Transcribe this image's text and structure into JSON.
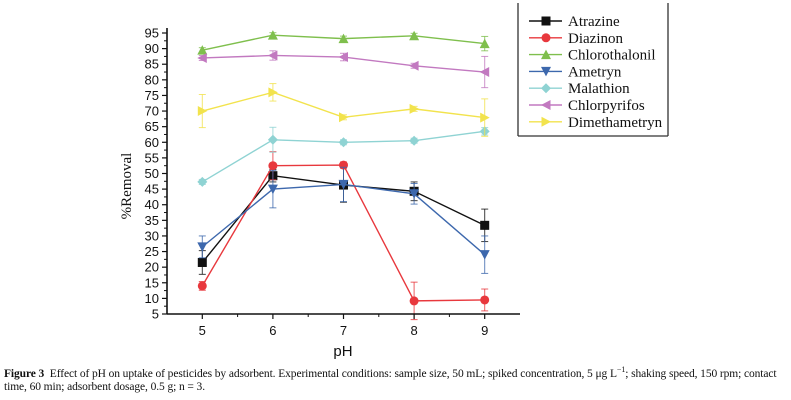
{
  "chart_data": {
    "type": "line",
    "title": "",
    "xlabel": "pH",
    "ylabel": "%Removal",
    "x": [
      5,
      6,
      7,
      8,
      9
    ],
    "xlim": [
      4.5,
      9.5
    ],
    "ylim": [
      5,
      95
    ],
    "xticks": [
      "5",
      "6",
      "7",
      "8",
      "9"
    ],
    "yticks": [
      "5",
      "10",
      "15",
      "20",
      "25",
      "30",
      "35",
      "40",
      "45",
      "50",
      "55",
      "60",
      "65",
      "70",
      "75",
      "80",
      "85",
      "90",
      "95"
    ],
    "grid": false,
    "legend_position": "top-right",
    "error_bars": true,
    "series": [
      {
        "name": "Atrazine",
        "color": "#111111",
        "marker": "square",
        "values": [
          21.5,
          49.3,
          46.3,
          44.3,
          33.4
        ],
        "errors": [
          3.8,
          2.0,
          5.5,
          3.0,
          5.2
        ]
      },
      {
        "name": "Diazinon",
        "color": "#e8383d",
        "marker": "circle",
        "values": [
          14.0,
          52.5,
          52.7,
          9.2,
          9.5
        ],
        "errors": [
          1.4,
          4.5,
          1.0,
          6.0,
          3.5
        ]
      },
      {
        "name": "Chlorothalonil",
        "color": "#7fbf4d",
        "marker": "triangle-up",
        "values": [
          89.5,
          94.3,
          93.2,
          94.1,
          91.6
        ],
        "errors": [
          0.8,
          0.8,
          0.8,
          0.8,
          2.3
        ]
      },
      {
        "name": "Ametryn",
        "color": "#3d68ad",
        "marker": "triangle-down",
        "values": [
          26.5,
          45.0,
          46.5,
          43.5,
          24.0
        ],
        "errors": [
          3.5,
          6.0,
          5.5,
          3.3,
          6.0
        ]
      },
      {
        "name": "Malathion",
        "color": "#8fd3d3",
        "marker": "diamond",
        "values": [
          47.3,
          60.8,
          60.0,
          60.5,
          63.5
        ],
        "errors": [
          0.8,
          4.0,
          0.8,
          0.8,
          1.2
        ]
      },
      {
        "name": "Chlorpyrifos",
        "color": "#c279c0",
        "marker": "triangle-left",
        "values": [
          87.0,
          87.8,
          87.3,
          84.5,
          82.5
        ],
        "errors": [
          0.8,
          1.5,
          1.2,
          0.8,
          5.0
        ]
      },
      {
        "name": "Dimethametryn",
        "color": "#f2e34d",
        "marker": "triangle-right",
        "values": [
          70.0,
          76.0,
          68.0,
          70.7,
          67.9
        ],
        "errors": [
          5.3,
          2.8,
          0.8,
          0.8,
          6.0
        ]
      }
    ]
  },
  "caption": {
    "label": "Figure 3",
    "text_part1": "Effect of pH on uptake of pesticides by adsorbent. Experimental conditions: sample size, 50  mL; spiked concentration, 5 μg L",
    "superscript": "−1",
    "text_part2": "; shaking speed, 150 rpm; contact time, 60 min; adsorbent dosage, 0.5 g; n = 3."
  }
}
